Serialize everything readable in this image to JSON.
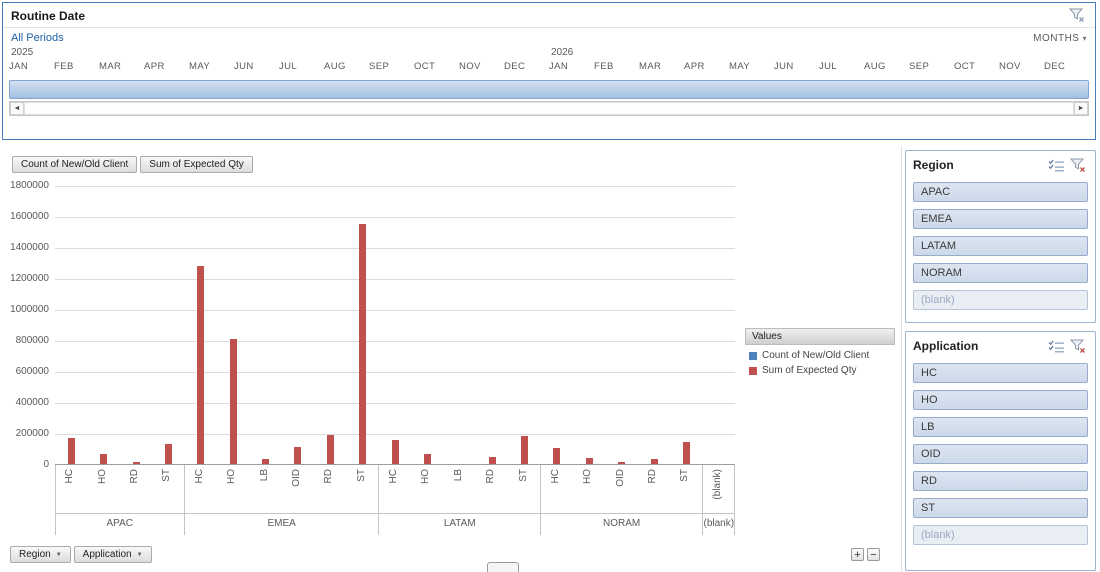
{
  "icons": {
    "dropdown_arrow": "▼",
    "dropdown_small": "▾",
    "scroll_left": "◄",
    "scroll_right": "►"
  },
  "timeline": {
    "title": "Routine Date",
    "selection_label": "All Periods",
    "level_selector": "MONTHS",
    "years": [
      "2025",
      "2026"
    ],
    "months": [
      "JAN",
      "FEB",
      "MAR",
      "APR",
      "MAY",
      "JUN",
      "JUL",
      "AUG",
      "SEP",
      "OCT",
      "NOV",
      "DEC"
    ]
  },
  "pivot_chart": {
    "value_field_buttons": [
      "Count of New/Old Client",
      "Sum of Expected Qty"
    ],
    "axis_field_buttons": [
      "Region",
      "Application"
    ],
    "zoom_in_label": "+",
    "zoom_out_label": "−"
  },
  "chart_data": {
    "type": "bar",
    "title": "",
    "ylim": [
      0,
      1800000
    ],
    "ytick_labels": [
      "0",
      "200000",
      "400000",
      "600000",
      "800000",
      "1000000",
      "1200000",
      "1400000",
      "1600000",
      "1800000"
    ],
    "legend": {
      "title": "Values",
      "entries": [
        {
          "label": "Count of New/Old Client",
          "color": "#4f81bd"
        },
        {
          "label": "Sum of Expected Qty",
          "color": "#c0504d"
        }
      ]
    },
    "groups": [
      {
        "label": "APAC",
        "categories": [
          "HC",
          "HO",
          "RD",
          "ST"
        ],
        "expected_qty": [
          165000,
          65000,
          12000,
          130000
        ]
      },
      {
        "label": "EMEA",
        "categories": [
          "HC",
          "HO",
          "LB",
          "OID",
          "RD",
          "ST"
        ],
        "expected_qty": [
          1280000,
          805000,
          35000,
          110000,
          185000,
          1550000
        ]
      },
      {
        "label": "LATAM",
        "categories": [
          "HC",
          "HO",
          "LB",
          "RD",
          "ST"
        ],
        "expected_qty": [
          155000,
          65000,
          0,
          45000,
          180000
        ]
      },
      {
        "label": "NORAM",
        "categories": [
          "HC",
          "HO",
          "OID",
          "RD",
          "ST"
        ],
        "expected_qty": [
          105000,
          40000,
          15000,
          35000,
          140000
        ]
      },
      {
        "label": "(blank)",
        "categories": [
          "(blank)"
        ],
        "expected_qty": [
          0
        ]
      }
    ],
    "note": "Count of New/Old Client bars are too small to be visible at this axis scale"
  },
  "slicers": [
    {
      "title": "Region",
      "items": [
        {
          "label": "APAC",
          "has_data": true
        },
        {
          "label": "EMEA",
          "has_data": true
        },
        {
          "label": "LATAM",
          "has_data": true
        },
        {
          "label": "NORAM",
          "has_data": true
        },
        {
          "label": "(blank)",
          "has_data": false
        }
      ]
    },
    {
      "title": "Application",
      "items": [
        {
          "label": "HC",
          "has_data": true
        },
        {
          "label": "HO",
          "has_data": true
        },
        {
          "label": "LB",
          "has_data": true
        },
        {
          "label": "OID",
          "has_data": true
        },
        {
          "label": "RD",
          "has_data": true
        },
        {
          "label": "ST",
          "has_data": true
        },
        {
          "label": "(blank)",
          "has_data": false
        }
      ]
    }
  ]
}
